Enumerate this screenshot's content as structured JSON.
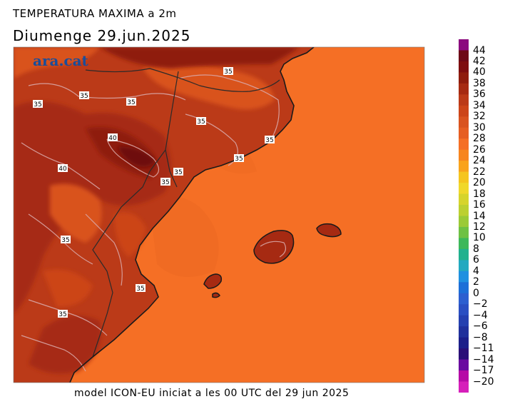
{
  "header": {
    "title": "TEMPERATURA MAXIMA a 2m",
    "subtitle": "Diumenge  29.jun.2025"
  },
  "footer": {
    "text": "model ICON-EU iniciat a les 00 UTC del 29 jun 2025"
  },
  "brand": {
    "logo_text": "ara.cat"
  },
  "colors": {
    "sea": "#f56f25",
    "land_30": "#d9531f",
    "land_34": "#bb3a18",
    "land_36": "#a62a12",
    "land_38": "#8f1c0d",
    "land_40": "#6e0c08",
    "isoline": "#d9a7a7",
    "coast": "#1a1a1a",
    "border": "#2a2a2a"
  },
  "isoline_labels": [
    "35",
    "35",
    "35",
    "35",
    "35",
    "40",
    "35",
    "35",
    "40",
    "35",
    "35",
    "35",
    "35",
    "35"
  ],
  "legend": {
    "labels": [
      "44",
      "42",
      "40",
      "38",
      "36",
      "34",
      "32",
      "30",
      "28",
      "26",
      "24",
      "22",
      "20",
      "18",
      "16",
      "14",
      "12",
      "10",
      "8",
      "6",
      "4",
      "2",
      "0",
      "−2",
      "−4",
      "−6",
      "−8",
      "−11",
      "−14",
      "−17",
      "−20"
    ],
    "colors": [
      "#8b0a7e",
      "#6e0816",
      "#7e0d0f",
      "#8f1c0d",
      "#a62a12",
      "#bb3a18",
      "#cc4519",
      "#d9531f",
      "#e65e22",
      "#f56f25",
      "#f7851e",
      "#f9a31b",
      "#f5c51e",
      "#f0d82a",
      "#d6d42b",
      "#bcd030",
      "#9bca36",
      "#6ec143",
      "#3db85a",
      "#20b18e",
      "#22a9c0",
      "#1f90e0",
      "#1c6fd8",
      "#2c5fd0",
      "#2a4fc2",
      "#2540b0",
      "#20309c",
      "#1c1f8a",
      "#2a0f78",
      "#6a0aa0",
      "#b60aa6",
      "#d61fba"
    ]
  }
}
